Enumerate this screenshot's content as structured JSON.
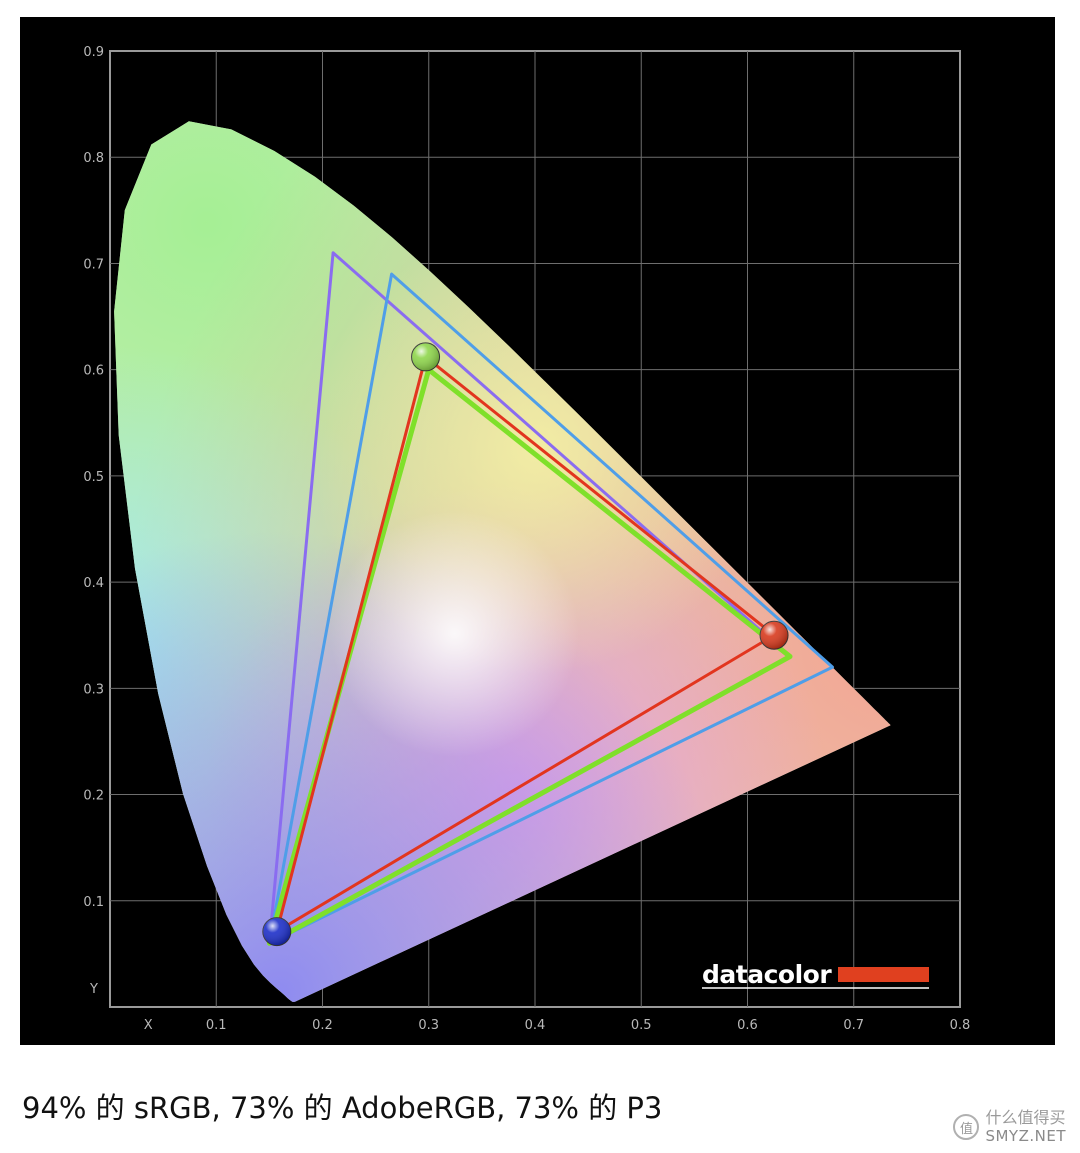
{
  "chart_data": {
    "type": "scatter",
    "title": "",
    "xlabel": "X",
    "ylabel": "Y",
    "xlim": [
      0,
      0.8
    ],
    "ylim": [
      0,
      0.9
    ],
    "x_ticks": [
      "0.1",
      "0.2",
      "0.3",
      "0.4",
      "0.5",
      "0.6",
      "0.7",
      "0.8"
    ],
    "y_ticks": [
      "0.1",
      "0.2",
      "0.3",
      "0.4",
      "0.5",
      "0.6",
      "0.7",
      "0.8",
      "0.9"
    ],
    "grid": true,
    "spectral_locus": [
      [
        0.1741,
        0.005
      ],
      [
        0.1738,
        0.0049
      ],
      [
        0.1736,
        0.0049
      ],
      [
        0.1733,
        0.0048
      ],
      [
        0.173,
        0.0048
      ],
      [
        0.1726,
        0.0048
      ],
      [
        0.1721,
        0.0048
      ],
      [
        0.1714,
        0.0051
      ],
      [
        0.1703,
        0.0058
      ],
      [
        0.1689,
        0.0069
      ],
      [
        0.1669,
        0.0086
      ],
      [
        0.1644,
        0.0109
      ],
      [
        0.1611,
        0.0138
      ],
      [
        0.1566,
        0.0177
      ],
      [
        0.151,
        0.0227
      ],
      [
        0.144,
        0.0297
      ],
      [
        0.1355,
        0.0399
      ],
      [
        0.1241,
        0.0578
      ],
      [
        0.1096,
        0.0868
      ],
      [
        0.0913,
        0.1327
      ],
      [
        0.0687,
        0.2007
      ],
      [
        0.0454,
        0.295
      ],
      [
        0.0235,
        0.4127
      ],
      [
        0.0082,
        0.5384
      ],
      [
        0.0039,
        0.6548
      ],
      [
        0.0139,
        0.7502
      ],
      [
        0.0389,
        0.812
      ],
      [
        0.0743,
        0.8338
      ],
      [
        0.1142,
        0.8262
      ],
      [
        0.1547,
        0.8059
      ],
      [
        0.1929,
        0.7816
      ],
      [
        0.2296,
        0.7543
      ],
      [
        0.2658,
        0.7243
      ],
      [
        0.3016,
        0.6923
      ],
      [
        0.3373,
        0.6589
      ],
      [
        0.3731,
        0.6245
      ],
      [
        0.4087,
        0.5896
      ],
      [
        0.4441,
        0.5547
      ],
      [
        0.4788,
        0.5202
      ],
      [
        0.5125,
        0.4866
      ],
      [
        0.5448,
        0.4544
      ],
      [
        0.5752,
        0.4242
      ],
      [
        0.6029,
        0.3965
      ],
      [
        0.627,
        0.3725
      ],
      [
        0.6482,
        0.3514
      ],
      [
        0.6658,
        0.334
      ],
      [
        0.6801,
        0.3197
      ],
      [
        0.6915,
        0.3083
      ],
      [
        0.7006,
        0.2993
      ],
      [
        0.7079,
        0.292
      ],
      [
        0.714,
        0.2859
      ],
      [
        0.719,
        0.2809
      ],
      [
        0.723,
        0.277
      ],
      [
        0.726,
        0.274
      ],
      [
        0.7283,
        0.2717
      ],
      [
        0.73,
        0.27
      ],
      [
        0.7311,
        0.2689
      ],
      [
        0.732,
        0.268
      ],
      [
        0.7327,
        0.2673
      ],
      [
        0.7334,
        0.2666
      ],
      [
        0.734,
        0.266
      ],
      [
        0.7344,
        0.2656
      ],
      [
        0.7346,
        0.2654
      ],
      [
        0.7347,
        0.2653
      ]
    ],
    "gamuts": [
      {
        "color": "#8a6cf0",
        "points": [
          [
            0.64,
            0.33
          ],
          [
            0.21,
            0.71
          ],
          [
            0.15,
            0.06
          ]
        ]
      },
      {
        "color": "#4f9ee8",
        "points": [
          [
            0.68,
            0.32
          ],
          [
            0.265,
            0.69
          ],
          [
            0.15,
            0.06
          ]
        ]
      },
      {
        "color": "#7fe02a",
        "points": [
          [
            0.64,
            0.33
          ],
          [
            0.3,
            0.6
          ],
          [
            0.15,
            0.06
          ]
        ]
      },
      {
        "color": "#e2351e",
        "points": [
          [
            0.625,
            0.35
          ],
          [
            0.297,
            0.612
          ],
          [
            0.157,
            0.071
          ]
        ]
      }
    ],
    "primaries": [
      {
        "color": "#d83a1e",
        "x": 0.625,
        "y": 0.35
      },
      {
        "color": "#8fd64c",
        "x": 0.297,
        "y": 0.612
      },
      {
        "color": "#1d2fc9",
        "x": 0.157,
        "y": 0.071
      }
    ],
    "brand": "datacolor",
    "brand_bar_color": "#e0401f"
  },
  "caption": "94% 的 sRGB, 73% 的 AdobeRGB, 73% 的 P3",
  "watermark": {
    "logo_glyph": "值",
    "text": "什么值得买",
    "sub": "SMYZ.NET"
  }
}
